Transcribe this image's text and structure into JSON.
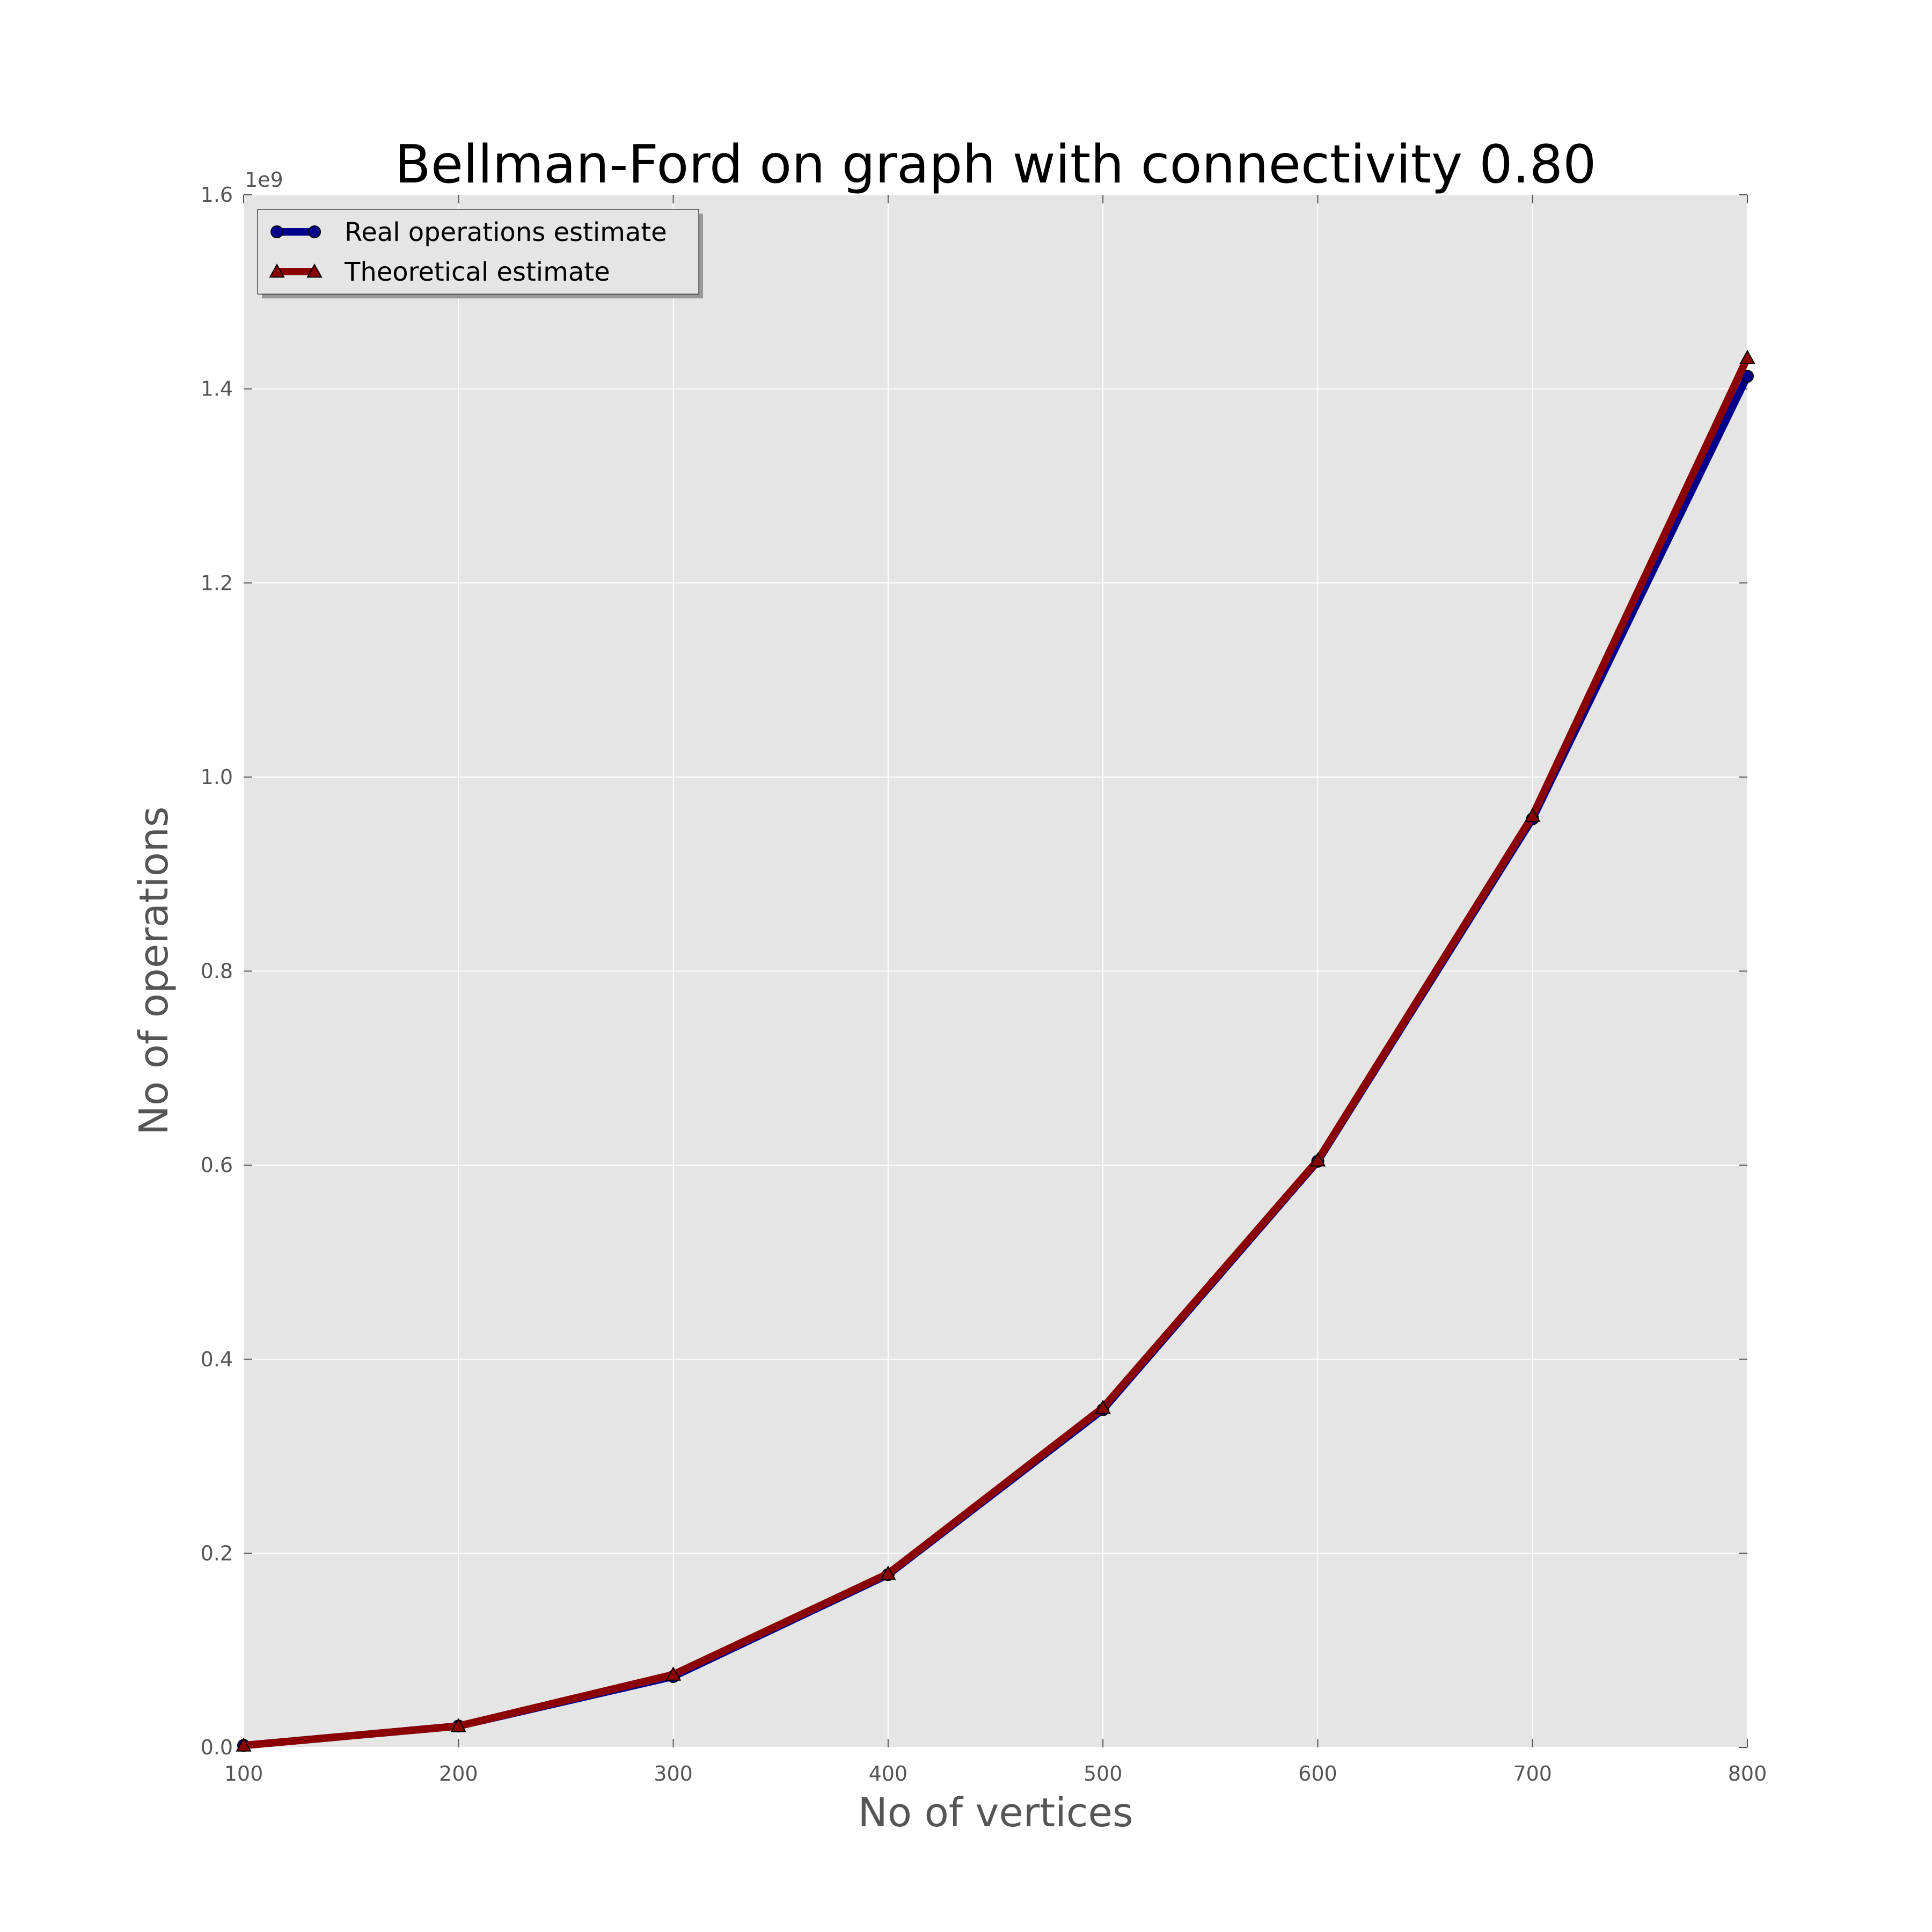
{
  "chart_data": {
    "type": "line",
    "title": "Bellman-Ford on graph with connectivity 0.80",
    "xlabel": "No of vertices",
    "ylabel": "No of operations",
    "y_offset_label": "1e9",
    "xlim": [
      100,
      800
    ],
    "ylim": [
      0,
      1.6
    ],
    "x_ticks": [
      100,
      200,
      300,
      400,
      500,
      600,
      700,
      800
    ],
    "x_tick_labels": [
      "100",
      "200",
      "300",
      "400",
      "500",
      "600",
      "700",
      "800"
    ],
    "y_ticks": [
      0.0,
      0.2,
      0.4,
      0.6,
      0.8,
      1.0,
      1.2,
      1.4,
      1.6
    ],
    "y_tick_labels": [
      "0.0",
      "0.2",
      "0.4",
      "0.6",
      "0.8",
      "1.0",
      "1.2",
      "1.4",
      "1.6"
    ],
    "grid": true,
    "legend_position": "top-left",
    "x": [
      100,
      200,
      300,
      400,
      500,
      600,
      700,
      800
    ],
    "series": [
      {
        "name": "Real operations estimate",
        "color": "#00008b",
        "marker": "circle",
        "values": [
          0.002,
          0.022,
          0.073,
          0.178,
          0.348,
          0.604,
          0.957,
          1.413
        ]
      },
      {
        "name": "Theoretical estimate",
        "color": "#8b0000",
        "marker": "triangle",
        "values": [
          0.002,
          0.022,
          0.075,
          0.179,
          0.35,
          0.605,
          0.96,
          1.432
        ]
      }
    ],
    "colors": {
      "plot_background": "#e5e5e5",
      "grid": "#ffffff"
    }
  }
}
